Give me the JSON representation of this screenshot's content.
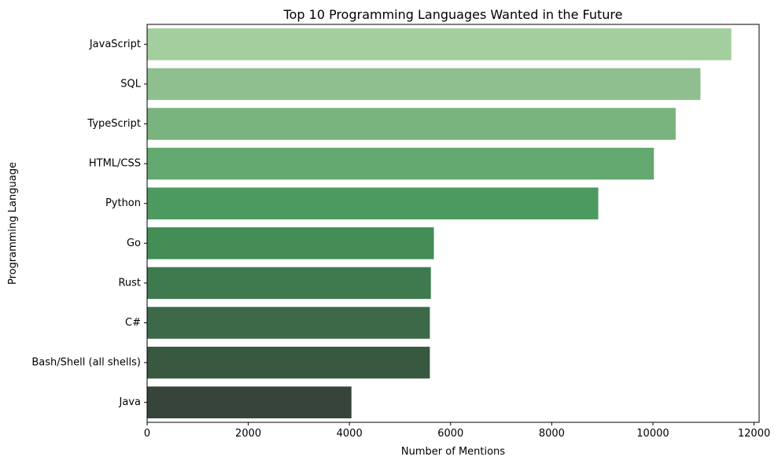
{
  "chart_data": {
    "type": "bar",
    "orientation": "horizontal",
    "title": "Top 10 Programming Languages Wanted in the Future",
    "xlabel": "Number of Mentions",
    "ylabel": "Programming Language",
    "categories": [
      "JavaScript",
      "SQL",
      "TypeScript",
      "HTML/CSS",
      "Python",
      "Go",
      "Rust",
      "C#",
      "Bash/Shell (all shells)",
      "Java"
    ],
    "values": [
      11550,
      10940,
      10450,
      10020,
      8920,
      5670,
      5610,
      5590,
      5590,
      4040
    ],
    "xlim": [
      0,
      12100
    ],
    "xticks": [
      0,
      2000,
      4000,
      6000,
      8000,
      10000,
      12000
    ],
    "grid": false,
    "legend": "none",
    "colors": [
      "#a3ce9e",
      "#8fbf8f",
      "#79b37d",
      "#63a86f",
      "#4d9a60",
      "#438d56",
      "#3f7a4f",
      "#3d6948",
      "#395840",
      "#36443a"
    ]
  }
}
